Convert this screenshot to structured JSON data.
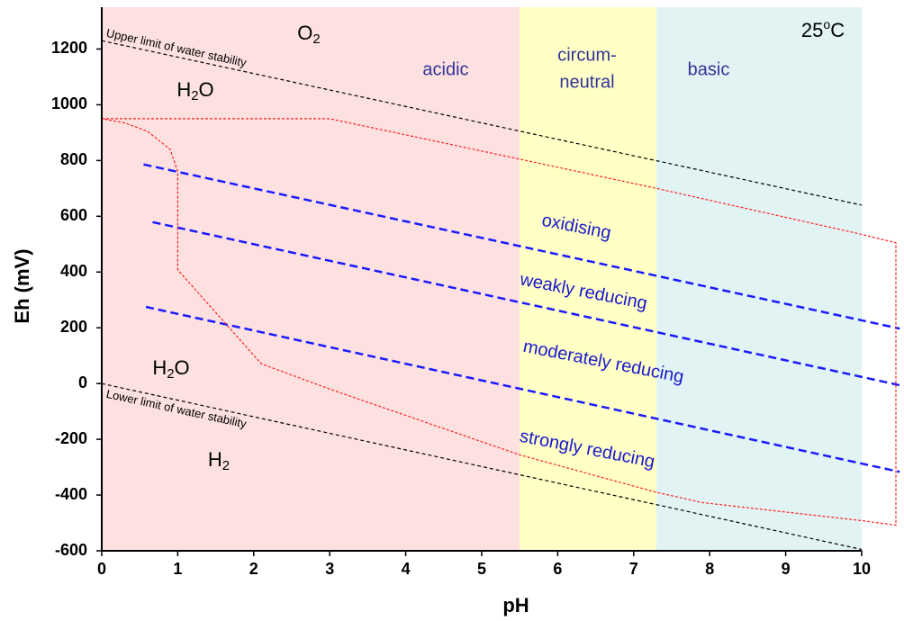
{
  "chart_data": {
    "type": "line",
    "xlabel": "pH",
    "ylabel": "Eh (mV)",
    "xlim": [
      0,
      10
    ],
    "ylim": [
      -600,
      1350
    ],
    "xticks": [
      0,
      1,
      2,
      3,
      4,
      5,
      6,
      7,
      8,
      9,
      10
    ],
    "yticks": [
      -600,
      -400,
      -200,
      0,
      200,
      400,
      600,
      800,
      1000,
      1200
    ],
    "regions": [
      {
        "label_lines": [
          "acidic"
        ],
        "x": [
          0,
          5.5
        ],
        "color": "#fde1e1"
      },
      {
        "label_lines": [
          "circum-",
          "neutral"
        ],
        "x": [
          5.5,
          7.3
        ],
        "color": "#ffffc6"
      },
      {
        "label_lines": [
          "basic"
        ],
        "x": [
          7.3,
          10
        ],
        "color": "#e1f3f3"
      }
    ],
    "series": [
      {
        "name": "Upper limit of water stability",
        "color": "#000000",
        "x": [
          0,
          10
        ],
        "values": [
          1230,
          640
        ]
      },
      {
        "name": "Lower limit of water stability",
        "color": "#000000",
        "x": [
          0,
          10
        ],
        "values": [
          0,
          -595
        ]
      },
      {
        "color": "#1a1aff",
        "x": [
          0.55,
          10.5
        ],
        "values": [
          786,
          197
        ]
      },
      {
        "color": "#1a1aff",
        "x": [
          0.67,
          10.5
        ],
        "values": [
          579,
          -6
        ]
      },
      {
        "color": "#1a1aff",
        "x": [
          0.58,
          10.5
        ],
        "values": [
          275,
          -317
        ]
      },
      {
        "color": "#ff2020",
        "x": [
          0,
          3,
          5.5,
          7.3,
          10,
          10.45,
          10.45,
          10,
          7.9,
          7.3,
          5.5,
          3,
          2.1,
          1,
          1,
          0.9,
          0.6,
          0.3,
          0
        ],
        "values": [
          950,
          950,
          805,
          700,
          535,
          505,
          -508,
          -492,
          -427,
          -390,
          -256,
          -20,
          71,
          408,
          760,
          840,
          905,
          935,
          950
        ]
      }
    ],
    "annotations": [
      {
        "segments": [
          {
            "t": "25"
          },
          {
            "t": "o",
            "sup": true
          },
          {
            "t": "C"
          }
        ]
      },
      {
        "segments": [
          {
            "t": "O"
          },
          {
            "t": "2",
            "sub": true
          }
        ]
      },
      {
        "segments": [
          {
            "t": "H"
          },
          {
            "t": "2",
            "sub": true
          },
          {
            "t": "O"
          }
        ]
      },
      {
        "segments": [
          {
            "t": "H"
          },
          {
            "t": "2",
            "sub": true
          },
          {
            "t": "O"
          }
        ]
      },
      {
        "segments": [
          {
            "t": "H"
          },
          {
            "t": "2",
            "sub": true
          }
        ]
      },
      {
        "segments": [
          {
            "t": "oxidising"
          }
        ]
      },
      {
        "segments": [
          {
            "t": "weakly reducing"
          }
        ]
      },
      {
        "segments": [
          {
            "t": "moderately reducing"
          }
        ]
      },
      {
        "segments": [
          {
            "t": "strongly reducing"
          }
        ]
      }
    ]
  }
}
